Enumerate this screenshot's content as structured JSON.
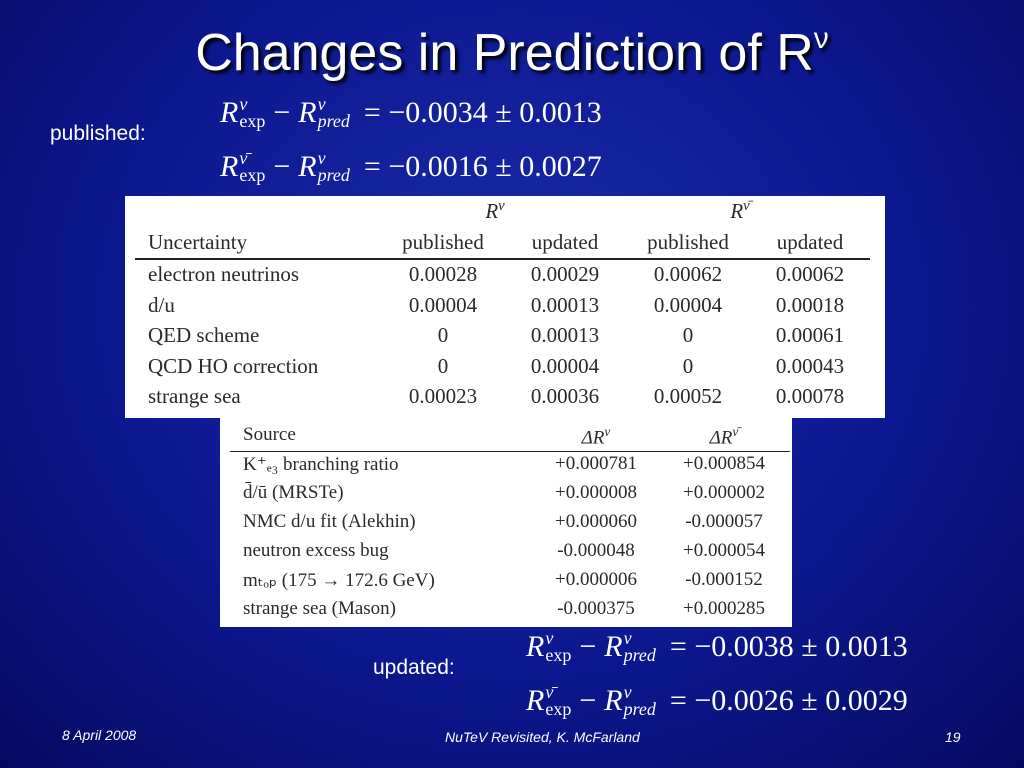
{
  "title": {
    "text": "Changes in Prediction of R",
    "sup": "ν"
  },
  "published_label": "published:",
  "published_equations": [
    {
      "r1": "R",
      "sup1": "ν",
      "sub1": "exp",
      "minus": "−",
      "r2": "R",
      "sup2": "ν",
      "sub2": "pred",
      "result": "= −0.0034 ± 0.0013"
    },
    {
      "r1": "R",
      "sup1": "ν̄",
      "sub1": "exp",
      "minus": "−",
      "r2": "R",
      "sup2": "ν",
      "sub2": "pred",
      "result": "= −0.0016 ± 0.0027"
    }
  ],
  "table1": {
    "group_headers": [
      {
        "base": "R",
        "sup": "ν"
      },
      {
        "base": "R",
        "sup": "ν̄"
      }
    ],
    "columns": [
      "Uncertainty",
      "published",
      "updated",
      "published",
      "updated"
    ],
    "rows": [
      [
        "electron neutrinos",
        "0.00028",
        "0.00029",
        "0.00062",
        "0.00062"
      ],
      [
        "d/u",
        "0.00004",
        "0.00013",
        "0.00004",
        "0.00018"
      ],
      [
        "QED scheme",
        "0",
        "0.00013",
        "0",
        "0.00061"
      ],
      [
        "QCD HO correction",
        "0",
        "0.00004",
        "0",
        "0.00043"
      ],
      [
        "strange sea",
        "0.00023",
        "0.00036",
        "0.00052",
        "0.00078"
      ]
    ]
  },
  "table2": {
    "columns": [
      "Source",
      {
        "base": "ΔR",
        "sup": "ν"
      },
      {
        "base": "ΔR",
        "sup": "ν̄"
      }
    ],
    "rows": [
      [
        "K⁺ₑ₃ branching ratio",
        "+0.000781",
        "+0.000854"
      ],
      [
        "d̄/ū (MRSTe)",
        "+0.000008",
        "+0.000002"
      ],
      [
        "NMC d/u fit (Alekhin)",
        "+0.000060",
        "-0.000057"
      ],
      [
        "neutron excess bug",
        "-0.000048",
        "+0.000054"
      ],
      [
        "mₜₒₚ (175 → 172.6 GeV)",
        "+0.000006",
        "-0.000152"
      ],
      [
        "strange sea (Mason)",
        "-0.000375",
        "+0.000285"
      ]
    ]
  },
  "updated_label": "updated:",
  "updated_equations": [
    {
      "r1": "R",
      "sup1": "ν",
      "sub1": "exp",
      "minus": "−",
      "r2": "R",
      "sup2": "ν",
      "sub2": "pred",
      "result": "= −0.0038 ± 0.0013"
    },
    {
      "r1": "R",
      "sup1": "ν̄",
      "sub1": "exp",
      "minus": "−",
      "r2": "R",
      "sup2": "ν",
      "sub2": "pred",
      "result": "= −0.0026 ± 0.0029"
    }
  ],
  "footer": {
    "date": "8 April 2008",
    "center": "NuTeV Revisited, K. McFarland",
    "page": "19"
  }
}
